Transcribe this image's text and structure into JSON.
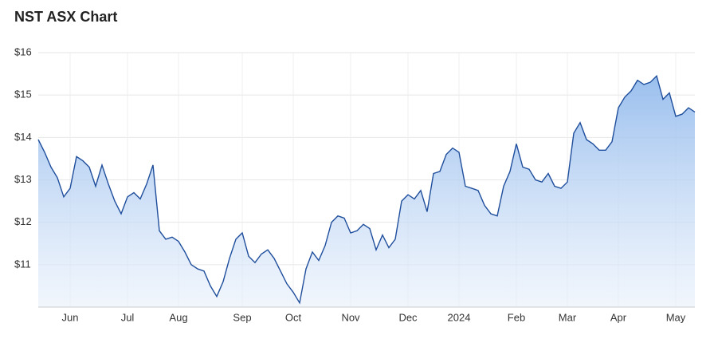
{
  "chart_data": {
    "type": "area",
    "title": "NST ASX Chart",
    "categories": [
      null,
      null,
      null,
      null,
      null,
      "Jun",
      null,
      null,
      null,
      null,
      null,
      null,
      null,
      null,
      "Jul",
      null,
      null,
      null,
      null,
      null,
      null,
      null,
      "Aug",
      null,
      null,
      null,
      null,
      null,
      null,
      null,
      null,
      null,
      "Sep",
      null,
      null,
      null,
      null,
      null,
      null,
      null,
      "Oct",
      null,
      null,
      null,
      null,
      null,
      null,
      null,
      null,
      "Nov",
      null,
      null,
      null,
      null,
      null,
      null,
      null,
      null,
      "Dec",
      null,
      null,
      null,
      null,
      null,
      null,
      null,
      "2024",
      null,
      null,
      null,
      null,
      null,
      null,
      null,
      null,
      "Feb",
      null,
      null,
      null,
      null,
      null,
      null,
      null,
      "Mar",
      null,
      null,
      null,
      null,
      null,
      null,
      null,
      "Apr",
      null,
      null,
      null,
      null,
      null,
      null,
      null,
      null,
      "May",
      null,
      null,
      null
    ],
    "values": [
      13.95,
      13.65,
      13.3,
      13.05,
      12.6,
      12.8,
      13.55,
      13.45,
      13.3,
      12.85,
      13.35,
      12.9,
      12.5,
      12.2,
      12.6,
      12.7,
      12.55,
      12.9,
      13.35,
      11.8,
      11.6,
      11.65,
      11.55,
      11.3,
      11.0,
      10.9,
      10.85,
      10.5,
      10.25,
      10.6,
      11.15,
      11.6,
      11.75,
      11.2,
      11.05,
      11.25,
      11.35,
      11.15,
      10.85,
      10.55,
      10.35,
      10.1,
      10.9,
      11.3,
      11.1,
      11.45,
      12.0,
      12.15,
      12.1,
      11.75,
      11.8,
      11.95,
      11.85,
      11.35,
      11.7,
      11.4,
      11.6,
      12.5,
      12.65,
      12.55,
      12.75,
      12.25,
      13.15,
      13.2,
      13.6,
      13.75,
      13.65,
      12.85,
      12.8,
      12.75,
      12.4,
      12.2,
      12.15,
      12.85,
      13.2,
      13.85,
      13.3,
      13.25,
      13.0,
      12.95,
      13.15,
      12.85,
      12.8,
      12.95,
      14.1,
      14.35,
      13.95,
      13.85,
      13.7,
      13.7,
      13.9,
      14.7,
      14.95,
      15.1,
      15.35,
      15.25,
      15.3,
      15.45,
      14.9,
      15.05,
      14.5,
      14.55,
      14.7,
      14.6
    ],
    "color": "#1f4e9c",
    "ylim": [
      10,
      16
    ],
    "yticks": [
      {
        "value": 11,
        "label": "$11"
      },
      {
        "value": 12,
        "label": "$12"
      },
      {
        "value": 13,
        "label": "$13"
      },
      {
        "value": 14,
        "label": "$14"
      },
      {
        "value": 15,
        "label": "$15"
      },
      {
        "value": 16,
        "label": "$16"
      }
    ],
    "grid": true
  }
}
